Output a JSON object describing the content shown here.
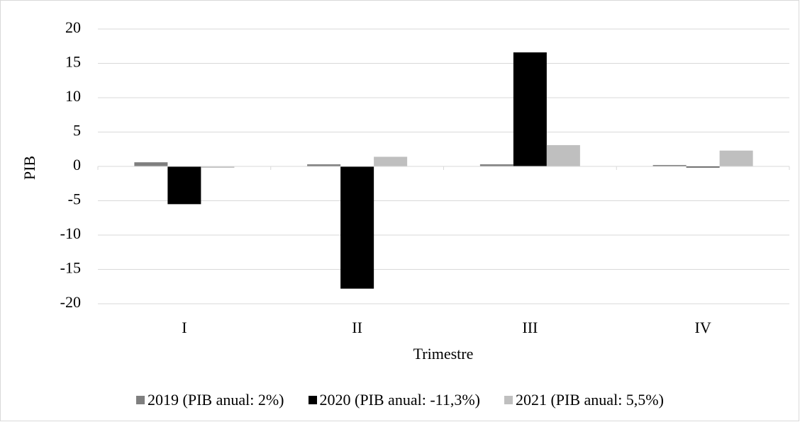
{
  "chart_data": {
    "type": "bar",
    "categories": [
      "I",
      "II",
      "III",
      "IV"
    ],
    "series": [
      {
        "name": "2019 (PIB anual: 2%)",
        "color": "#7f7f7f",
        "values": [
          0.6,
          0.3,
          0.3,
          0.2
        ]
      },
      {
        "name": "2020 (PIB anual: -11,3%)",
        "color": "#000000",
        "values": [
          -5.5,
          -17.8,
          16.6,
          -0.1
        ]
      },
      {
        "name": "2021 (PIB anual: 5,5%)",
        "color": "#bfbfbf",
        "values": [
          -0.2,
          1.4,
          3.1,
          2.3
        ]
      }
    ],
    "xlabel": "Trimestre",
    "ylabel": "PIB",
    "ylim": [
      -20,
      20
    ],
    "yticks": [
      "20",
      "15",
      "10",
      "5",
      "0",
      "-5",
      "-10",
      "-15",
      "-20"
    ],
    "grid": true,
    "legend_position": "bottom"
  }
}
